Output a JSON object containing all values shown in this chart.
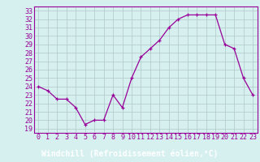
{
  "hours": [
    0,
    1,
    2,
    3,
    4,
    5,
    6,
    7,
    8,
    9,
    10,
    11,
    12,
    13,
    14,
    15,
    16,
    17,
    18,
    19,
    20,
    21,
    22,
    23
  ],
  "values": [
    24.0,
    23.5,
    22.5,
    22.5,
    21.5,
    19.5,
    20.0,
    20.0,
    23.0,
    21.5,
    25.0,
    27.5,
    28.5,
    29.5,
    31.0,
    32.0,
    32.5,
    32.5,
    32.5,
    32.5,
    29.0,
    28.5,
    25.0,
    23.0
  ],
  "line_color": "#990099",
  "marker": "+",
  "bg_color": "#d6f0ef",
  "grid_color": "#b0c8c8",
  "xlabel": "Windchill (Refroidissement éolien,°C)",
  "xlabel_color": "#ffffff",
  "xlabel_bg": "#990099",
  "ylabel_ticks": [
    19,
    20,
    21,
    22,
    23,
    24,
    25,
    26,
    27,
    28,
    29,
    30,
    31,
    32,
    33
  ],
  "ylim": [
    18.5,
    33.5
  ],
  "xlim": [
    -0.5,
    23.5
  ],
  "tick_fontsize": 6,
  "xlabel_fontsize": 7
}
